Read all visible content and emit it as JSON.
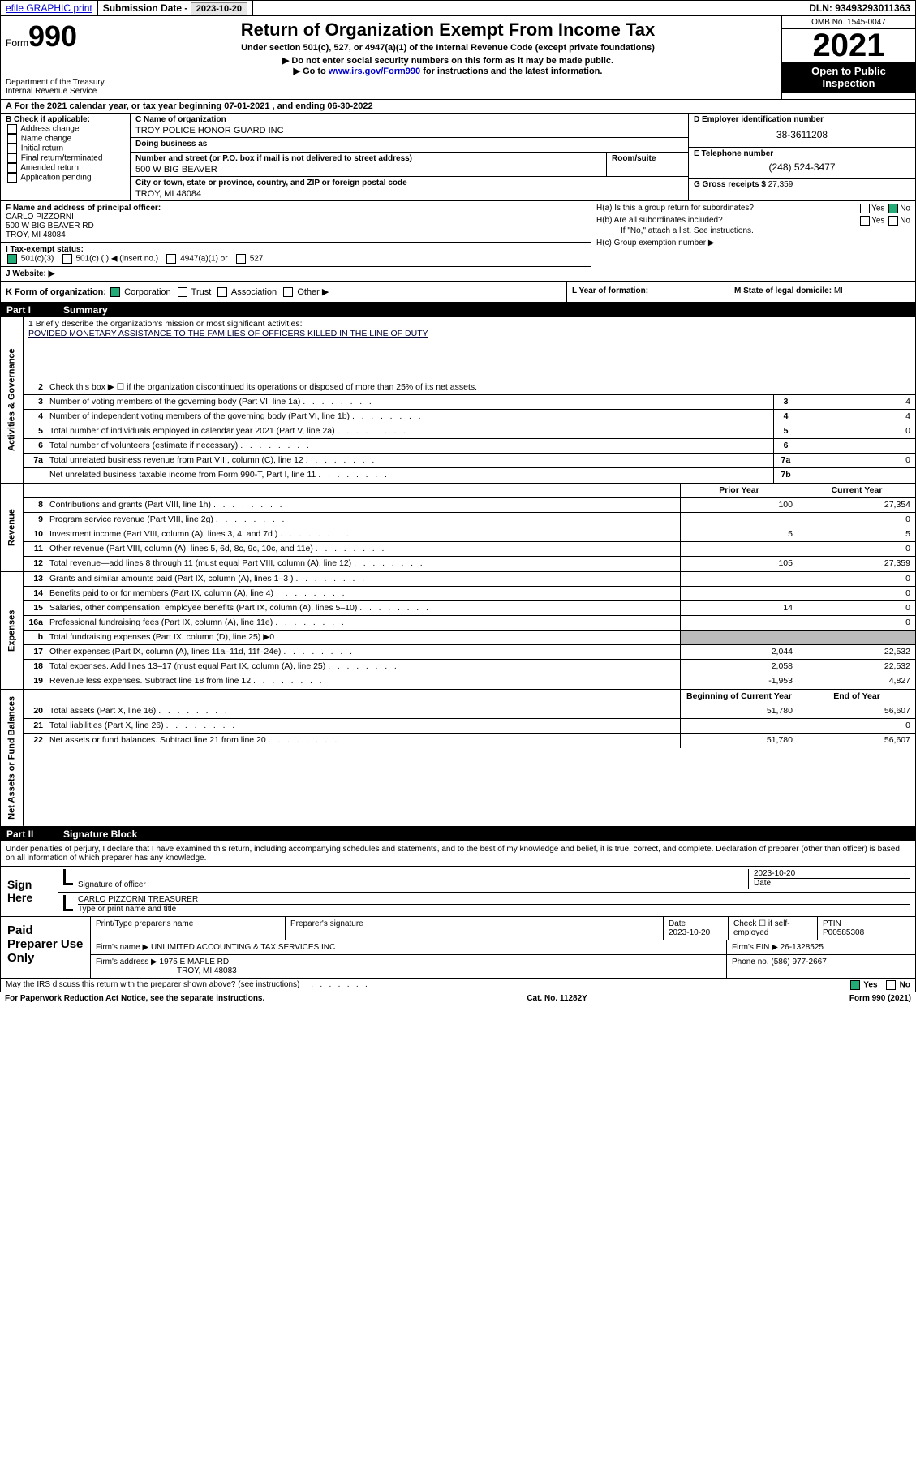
{
  "topbar": {
    "efile": "efile GRAPHIC print",
    "sub_label": "Submission Date - ",
    "sub_date": "2023-10-20",
    "dln_label": "DLN: ",
    "dln": "93493293011363"
  },
  "header": {
    "form_label": "Form",
    "form_num": "990",
    "dept1": "Department of the Treasury",
    "dept2": "Internal Revenue Service",
    "title": "Return of Organization Exempt From Income Tax",
    "sub1": "Under section 501(c), 527, or 4947(a)(1) of the Internal Revenue Code (except private foundations)",
    "sub2": "▶ Do not enter social security numbers on this form as it may be made public.",
    "sub3a": "▶ Go to ",
    "sub3_link": "www.irs.gov/Form990",
    "sub3b": " for instructions and the latest information.",
    "omb": "OMB No. 1545-0047",
    "year": "2021",
    "open": "Open to Public Inspection"
  },
  "rowA": {
    "text_a": "A For the 2021 calendar year, or tax year beginning ",
    "begin": "07-01-2021",
    "text_b": " , and ending ",
    "end": "06-30-2022"
  },
  "colB": {
    "hdr": "B Check if applicable:",
    "opts": [
      "Address change",
      "Name change",
      "Initial return",
      "Final return/terminated",
      "Amended return",
      "Application pending"
    ]
  },
  "colC": {
    "name_lbl": "C Name of organization",
    "name": "TROY POLICE HONOR GUARD INC",
    "dba_lbl": "Doing business as",
    "dba": "",
    "street_lbl": "Number and street (or P.O. box if mail is not delivered to street address)",
    "street": "500 W BIG BEAVER",
    "room_lbl": "Room/suite",
    "city_lbl": "City or town, state or province, country, and ZIP or foreign postal code",
    "city": "TROY, MI  48084"
  },
  "colD": {
    "lbl": "D Employer identification number",
    "val": "38-3611208"
  },
  "colE": {
    "lbl": "E Telephone number",
    "val": "(248) 524-3477",
    "gross_lbl": "G Gross receipts $ ",
    "gross": "27,359"
  },
  "colF": {
    "lbl": "F Name and address of principal officer:",
    "name": "CARLO PIZZORNI",
    "addr1": "500 W BIG BEAVER RD",
    "addr2": "TROY, MI  48084"
  },
  "colH": {
    "ha": "H(a)  Is this a group return for subordinates?",
    "hb": "H(b)  Are all subordinates included?",
    "hb_note": "If \"No,\" attach a list. See instructions.",
    "hc": "H(c)  Group exemption number ▶",
    "yes": "Yes",
    "no": "No"
  },
  "rowI": {
    "lbl": "I     Tax-exempt status:",
    "o1": "501(c)(3)",
    "o2": "501(c) (   ) ◀ (insert no.)",
    "o3": "4947(a)(1) or",
    "o4": "527"
  },
  "rowJ": {
    "lbl": "J     Website: ▶"
  },
  "rowK": {
    "lbl": "K Form of organization:",
    "o1": "Corporation",
    "o2": "Trust",
    "o3": "Association",
    "o4": "Other ▶",
    "l_lbl": "L Year of formation:",
    "m_lbl": "M State of legal domicile: ",
    "m_val": "MI"
  },
  "part1": {
    "num": "Part I",
    "title": "Summary"
  },
  "vtabs": {
    "gov": "Activities & Governance",
    "rev": "Revenue",
    "exp": "Expenses",
    "net": "Net Assets or Fund Balances"
  },
  "mission": {
    "lbl": "1   Briefly describe the organization's mission or most significant activities:",
    "text": "POVIDED MONETARY ASSISTANCE TO THE FAMILIES OF OFFICERS KILLED IN THE LINE OF DUTY"
  },
  "gov_rows": [
    {
      "n": "2",
      "t": "Check this box ▶ ☐  if the organization discontinued its operations or disposed of more than 25% of its net assets."
    },
    {
      "n": "3",
      "t": "Number of voting members of the governing body (Part VI, line 1a)",
      "box": "3",
      "v": "4"
    },
    {
      "n": "4",
      "t": "Number of independent voting members of the governing body (Part VI, line 1b)",
      "box": "4",
      "v": "4"
    },
    {
      "n": "5",
      "t": "Total number of individuals employed in calendar year 2021 (Part V, line 2a)",
      "box": "5",
      "v": "0"
    },
    {
      "n": "6",
      "t": "Total number of volunteers (estimate if necessary)",
      "box": "6",
      "v": ""
    },
    {
      "n": "7a",
      "t": "Total unrelated business revenue from Part VIII, column (C), line 12",
      "box": "7a",
      "v": "0"
    },
    {
      "n": "",
      "t": "Net unrelated business taxable income from Form 990-T, Part I, line 11",
      "box": "7b",
      "v": ""
    }
  ],
  "col_hdrs": {
    "prior": "Prior Year",
    "current": "Current Year",
    "begin": "Beginning of Current Year",
    "end": "End of Year"
  },
  "rev_rows": [
    {
      "n": "8",
      "t": "Contributions and grants (Part VIII, line 1h)",
      "p": "100",
      "c": "27,354"
    },
    {
      "n": "9",
      "t": "Program service revenue (Part VIII, line 2g)",
      "p": "",
      "c": "0"
    },
    {
      "n": "10",
      "t": "Investment income (Part VIII, column (A), lines 3, 4, and 7d )",
      "p": "5",
      "c": "5"
    },
    {
      "n": "11",
      "t": "Other revenue (Part VIII, column (A), lines 5, 6d, 8c, 9c, 10c, and 11e)",
      "p": "",
      "c": "0"
    },
    {
      "n": "12",
      "t": "Total revenue—add lines 8 through 11 (must equal Part VIII, column (A), line 12)",
      "p": "105",
      "c": "27,359"
    }
  ],
  "exp_rows": [
    {
      "n": "13",
      "t": "Grants and similar amounts paid (Part IX, column (A), lines 1–3 )",
      "p": "",
      "c": "0"
    },
    {
      "n": "14",
      "t": "Benefits paid to or for members (Part IX, column (A), line 4)",
      "p": "",
      "c": "0"
    },
    {
      "n": "15",
      "t": "Salaries, other compensation, employee benefits (Part IX, column (A), lines 5–10)",
      "p": "14",
      "c": "0"
    },
    {
      "n": "16a",
      "t": "Professional fundraising fees (Part IX, column (A), line 11e)",
      "p": "",
      "c": "0"
    },
    {
      "n": "b",
      "t": "Total fundraising expenses (Part IX, column (D), line 25) ▶0",
      "shade": true
    },
    {
      "n": "17",
      "t": "Other expenses (Part IX, column (A), lines 11a–11d, 11f–24e)",
      "p": "2,044",
      "c": "22,532"
    },
    {
      "n": "18",
      "t": "Total expenses. Add lines 13–17 (must equal Part IX, column (A), line 25)",
      "p": "2,058",
      "c": "22,532"
    },
    {
      "n": "19",
      "t": "Revenue less expenses. Subtract line 18 from line 12",
      "p": "-1,953",
      "c": "4,827"
    }
  ],
  "net_rows": [
    {
      "n": "20",
      "t": "Total assets (Part X, line 16)",
      "p": "51,780",
      "c": "56,607"
    },
    {
      "n": "21",
      "t": "Total liabilities (Part X, line 26)",
      "p": "",
      "c": "0"
    },
    {
      "n": "22",
      "t": "Net assets or fund balances. Subtract line 21 from line 20",
      "p": "51,780",
      "c": "56,607"
    }
  ],
  "part2": {
    "num": "Part II",
    "title": "Signature Block"
  },
  "sig": {
    "decl": "Under penalties of perjury, I declare that I have examined this return, including accompanying schedules and statements, and to the best of my knowledge and belief, it is true, correct, and complete. Declaration of preparer (other than officer) is based on all information of which preparer has any knowledge.",
    "sign_here": "Sign Here",
    "sig_officer": "Signature of officer",
    "date": "2023-10-20",
    "date_lbl": "Date",
    "name": "CARLO PIZZORNI TREASURER",
    "name_lbl": "Type or print name and title"
  },
  "prep": {
    "title": "Paid Preparer Use Only",
    "h1": "Print/Type preparer's name",
    "h2": "Preparer's signature",
    "h3": "Date",
    "h4": "Check ☐ if self-employed",
    "h5": "PTIN",
    "date": "2023-10-20",
    "ptin": "P00585308",
    "firm_lbl": "Firm's name    ▶ ",
    "firm": "UNLIMITED ACCOUNTING & TAX SERVICES INC",
    "ein_lbl": "Firm's EIN ▶ ",
    "ein": "26-1328525",
    "addr_lbl": "Firm's address ▶ ",
    "addr1": "1975 E MAPLE RD",
    "addr2": "TROY, MI  48083",
    "phone_lbl": "Phone no. ",
    "phone": "(586) 977-2667"
  },
  "foot": {
    "q": "May the IRS discuss this return with the preparer shown above? (see instructions)",
    "yes": "Yes",
    "no": "No",
    "pra": "For Paperwork Reduction Act Notice, see the separate instructions.",
    "cat": "Cat. No. 11282Y",
    "form": "Form 990 (2021)"
  }
}
